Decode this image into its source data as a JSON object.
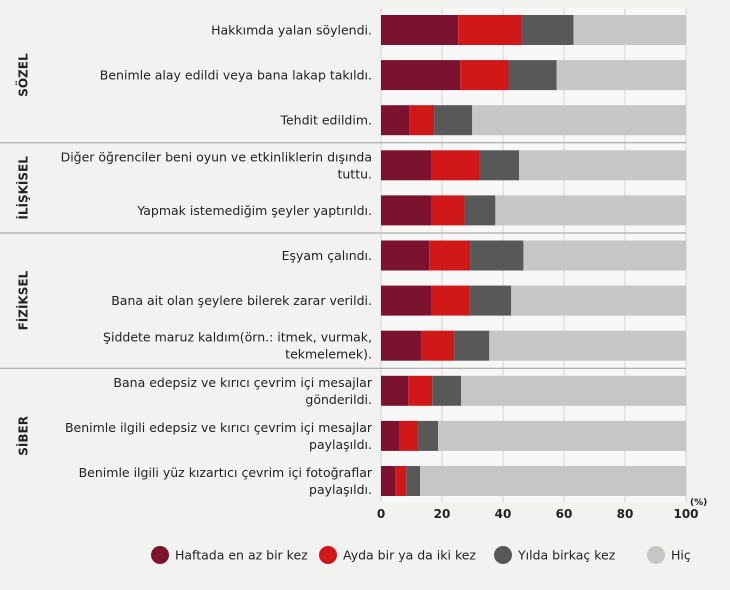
{
  "chart_data": {
    "type": "bar",
    "orientation": "horizontal",
    "stacked": true,
    "unit_label": "(%)",
    "xlim": [
      0,
      100
    ],
    "xticks": [
      0,
      20,
      40,
      60,
      80,
      100
    ],
    "grid": true,
    "legend_placement": "bottom",
    "groups": [
      {
        "label": "SÖZEL",
        "rows": [
          0,
          1,
          2
        ]
      },
      {
        "label": "İLİŞKİSEL",
        "rows": [
          3,
          4
        ]
      },
      {
        "label": "FİZİKSEL",
        "rows": [
          5,
          6,
          7
        ]
      },
      {
        "label": "SİBER",
        "rows": [
          8,
          9,
          10
        ]
      }
    ],
    "categories": [
      [
        "Hakkımda yalan söylendi."
      ],
      [
        "Benimle alay edildi veya bana lakap takıldı."
      ],
      [
        "Tehdit edildim."
      ],
      [
        "Diğer öğrenciler beni oyun ve etkinliklerin dışında",
        "tuttu."
      ],
      [
        "Yapmak istemediğim şeyler yaptırıldı."
      ],
      [
        "Eşyam çalındı."
      ],
      [
        "Bana ait olan şeylere bilerek zarar verildi."
      ],
      [
        "Şiddete maruz kaldım(örn.: itmek, vurmak,",
        "tekmelemek)."
      ],
      [
        "Bana edepsiz ve kırıcı çevrim içi mesajlar",
        "gönderildi."
      ],
      [
        "Benimle ilgili edepsiz ve kırıcı çevrim içi mesajlar",
        "paylaşıldı."
      ],
      [
        "Benimle ilgili yüz kızartıcı çevrim içi fotoğraflar",
        "paylaşıldı."
      ]
    ],
    "series": [
      {
        "name": "Haftada en az bir kez",
        "color": "#7a1230",
        "values": [
          25.3,
          26.0,
          9.2,
          16.4,
          16.4,
          15.8,
          16.4,
          13.1,
          8.9,
          5.9,
          4.6
        ]
      },
      {
        "name": "Ayda bir ya da iki kez",
        "color": "#d01818",
        "values": [
          20.9,
          15.8,
          8.2,
          15.9,
          11.0,
          13.4,
          12.6,
          10.9,
          7.9,
          5.9,
          3.7
        ]
      },
      {
        "name": "Yılda birkaç kez",
        "color": "#585858",
        "values": [
          16.9,
          15.8,
          12.5,
          13.0,
          10.1,
          17.5,
          13.7,
          11.5,
          9.5,
          6.9,
          4.5
        ]
      },
      {
        "name": "Hiç",
        "color": "#c6c6c6",
        "values": [
          36.9,
          42.4,
          70.1,
          54.7,
          62.5,
          53.3,
          57.3,
          64.5,
          73.7,
          81.3,
          87.2
        ]
      }
    ]
  }
}
